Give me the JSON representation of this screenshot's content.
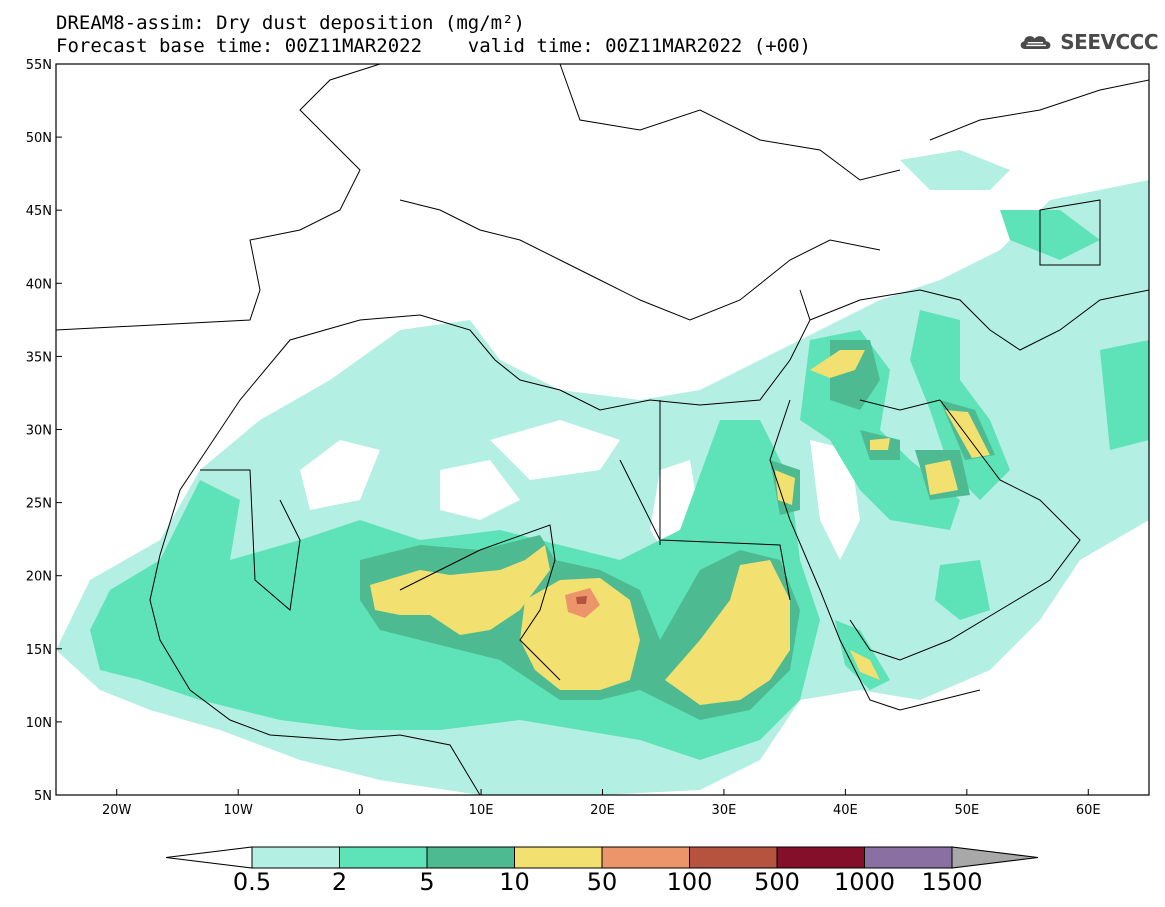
{
  "title": {
    "line1": "DREAM8-assim: Dry dust deposition (mg/m²)",
    "line2": "Forecast base time: 00Z11MAR2022    valid time: 00Z11MAR2022 (+00)"
  },
  "logo": {
    "text": "SEEVCCC",
    "icon": "cloud-icon"
  },
  "map": {
    "lon_range": [
      -25,
      65
    ],
    "lat_range": [
      5,
      55
    ],
    "y_ticks": [
      {
        "lat": 55,
        "label": "55N"
      },
      {
        "lat": 50,
        "label": "50N"
      },
      {
        "lat": 45,
        "label": "45N"
      },
      {
        "lat": 40,
        "label": "40N"
      },
      {
        "lat": 35,
        "label": "35N"
      },
      {
        "lat": 30,
        "label": "30N"
      },
      {
        "lat": 25,
        "label": "25N"
      },
      {
        "lat": 20,
        "label": "20N"
      },
      {
        "lat": 15,
        "label": "15N"
      },
      {
        "lat": 10,
        "label": "10N"
      },
      {
        "lat": 5,
        "label": "5N"
      }
    ],
    "x_ticks": [
      {
        "lon": -20,
        "label": "20W"
      },
      {
        "lon": -10,
        "label": "10W"
      },
      {
        "lon": 0,
        "label": "0"
      },
      {
        "lon": 10,
        "label": "10E"
      },
      {
        "lon": 20,
        "label": "20E"
      },
      {
        "lon": 30,
        "label": "30E"
      },
      {
        "lon": 40,
        "label": "40E"
      },
      {
        "lon": 50,
        "label": "50E"
      },
      {
        "lon": 60,
        "label": "60E"
      }
    ]
  },
  "colorbar": {
    "colors": [
      "#b3efe2",
      "#5ee2b8",
      "#4dba92",
      "#f2e070",
      "#ec956a",
      "#b5533f",
      "#840f2a",
      "#8a6fa3"
    ],
    "left_arrow_color": "#ffffff",
    "right_arrow_color": "#a8a8a8",
    "labels": [
      "0.5",
      "2",
      "5",
      "10",
      "50",
      "100",
      "500",
      "1000",
      "1500"
    ]
  }
}
